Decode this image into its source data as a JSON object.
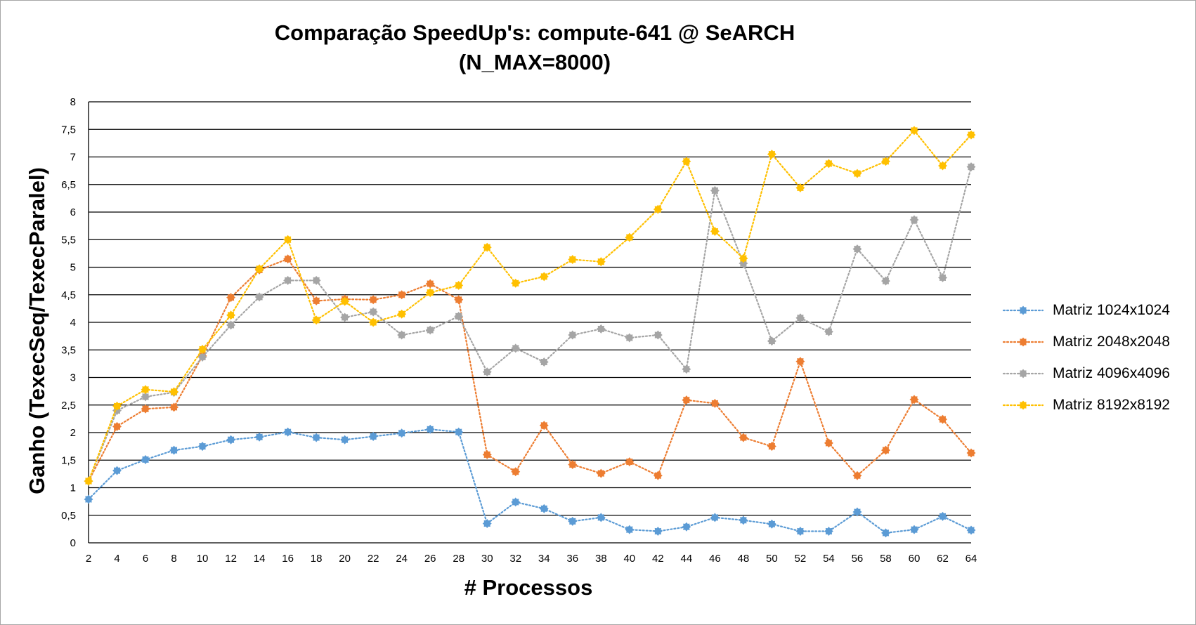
{
  "chart_data": {
    "type": "line",
    "title": "Comparação SpeedUp's: compute-641 @ SeARCH",
    "subtitle": "(N_MAX=8000)",
    "xlabel": "# Processos",
    "ylabel": "Ganho (TexecSeq/TexecParalel)",
    "ylim": [
      0,
      8
    ],
    "y_ticks": [
      "0",
      "0,5",
      "1",
      "1,5",
      "2",
      "2,5",
      "3",
      "3,5",
      "4",
      "4,5",
      "5",
      "5,5",
      "6",
      "6,5",
      "7",
      "7,5",
      "8"
    ],
    "grid": "horizontal",
    "legend_position": "right",
    "categories": [
      "2",
      "4",
      "6",
      "8",
      "10",
      "12",
      "14",
      "16",
      "18",
      "20",
      "22",
      "24",
      "26",
      "28",
      "30",
      "32",
      "34",
      "36",
      "38",
      "40",
      "42",
      "44",
      "46",
      "48",
      "50",
      "52",
      "54",
      "56",
      "58",
      "60",
      "62",
      "64"
    ],
    "series": [
      {
        "name": "Matriz 1024x1024",
        "color": "#5b9bd5",
        "values": [
          0.79,
          1.31,
          1.51,
          1.68,
          1.75,
          1.87,
          1.92,
          2.01,
          1.91,
          1.87,
          1.93,
          1.99,
          2.06,
          2.01,
          0.35,
          0.74,
          0.62,
          0.39,
          0.46,
          0.24,
          0.21,
          0.29,
          0.46,
          0.41,
          0.34,
          0.21,
          0.21,
          0.56,
          0.18,
          0.24,
          0.48,
          0.23
        ]
      },
      {
        "name": "Matriz 2048x2048",
        "color": "#ed7d31",
        "values": [
          1.12,
          2.11,
          2.43,
          2.46,
          3.39,
          4.45,
          4.95,
          5.15,
          4.39,
          4.42,
          4.41,
          4.5,
          4.7,
          4.41,
          1.6,
          1.29,
          2.13,
          1.42,
          1.26,
          1.47,
          1.22,
          2.59,
          2.53,
          1.91,
          1.75,
          3.29,
          1.81,
          1.22,
          1.68,
          2.6,
          2.24,
          1.63
        ]
      },
      {
        "name": "Matriz 4096x4096",
        "color": "#a5a5a5",
        "values": [
          1.12,
          2.4,
          2.65,
          2.73,
          3.37,
          3.95,
          4.46,
          4.76,
          4.76,
          4.09,
          4.19,
          3.77,
          3.86,
          4.11,
          3.1,
          3.53,
          3.28,
          3.77,
          3.88,
          3.72,
          3.77,
          3.15,
          6.39,
          5.07,
          3.66,
          4.08,
          3.83,
          5.33,
          4.75,
          5.86,
          4.81,
          6.82
        ]
      },
      {
        "name": "Matriz 8192x8192",
        "color": "#ffc000",
        "values": [
          1.12,
          2.48,
          2.78,
          2.74,
          3.51,
          4.13,
          4.97,
          5.5,
          4.04,
          4.38,
          4.0,
          4.15,
          4.54,
          4.67,
          5.36,
          4.71,
          4.83,
          5.14,
          5.1,
          5.54,
          6.05,
          6.92,
          5.65,
          5.16,
          7.05,
          6.44,
          6.88,
          6.7,
          6.92,
          7.48,
          6.84,
          7.4
        ]
      }
    ]
  }
}
